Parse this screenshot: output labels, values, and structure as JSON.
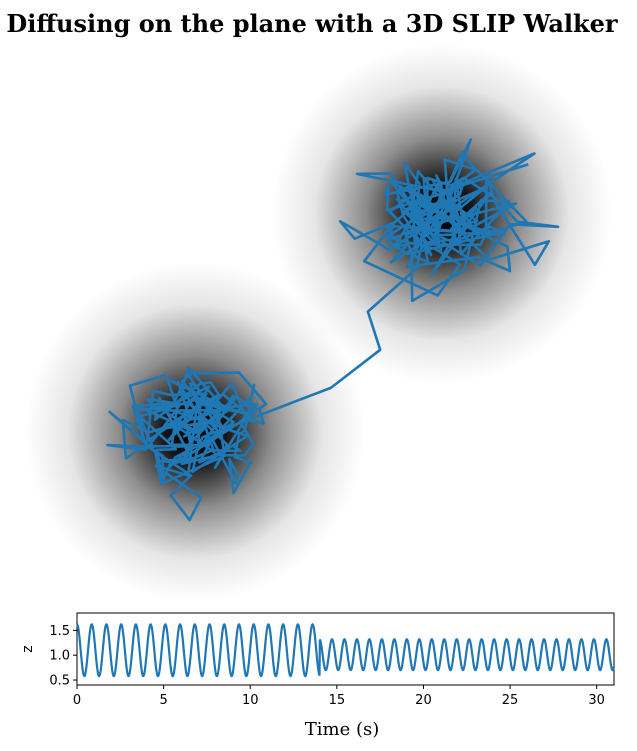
{
  "chart_data": [
    {
      "type": "heatmap",
      "title": "Diffusing on the plane with a 3D SLIP Walker",
      "axes_visible": false,
      "colormap": "white-to-black (darker = higher density)",
      "density_peaks": [
        {
          "name": "lower-left well",
          "x": 0.3,
          "y": 0.3
        },
        {
          "name": "upper-right well",
          "x": 0.7,
          "y": 0.7
        }
      ],
      "trajectory_color": "#1f77b4",
      "trajectory_description": "random walk path diffusing around the lower-left well, then crossing to the upper-right well"
    },
    {
      "type": "line",
      "xlabel": "Time (s)",
      "ylabel": "z",
      "xlim": [
        0,
        31
      ],
      "ylim": [
        0.4,
        1.85
      ],
      "xticks": [
        "0",
        "5",
        "10",
        "15",
        "20",
        "25",
        "30"
      ],
      "yticks": [
        "0.5",
        "1.0",
        "1.5"
      ],
      "color": "#1f77b4",
      "series": [
        {
          "segments": [
            {
              "t_start": 0.0,
              "t_end": 14.0,
              "period": 0.85,
              "peak": 1.62,
              "trough": 0.58
            },
            {
              "t_start": 14.0,
              "t_end": 31.0,
              "period": 0.72,
              "peak": 1.32,
              "trough": 0.7
            }
          ],
          "final_value": 0.78
        }
      ]
    }
  ]
}
